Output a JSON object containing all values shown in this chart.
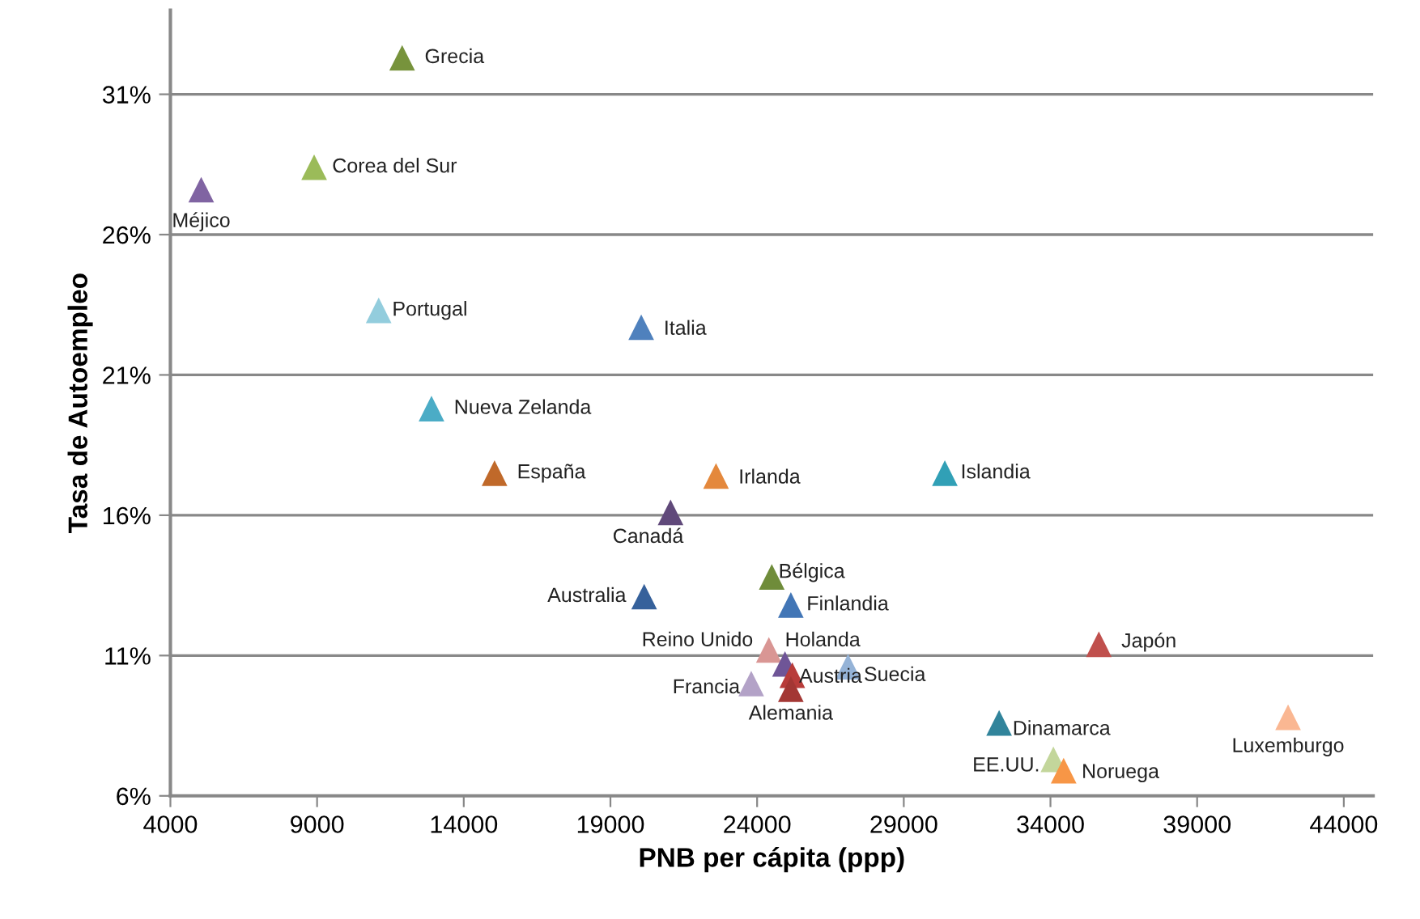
{
  "chart_data": {
    "type": "scatter",
    "xlabel": "PNB per cápita (ppp)",
    "ylabel": "Tasa de Autoempleo",
    "xlim": [
      4000,
      45000
    ],
    "xticks": [
      4000,
      9000,
      14000,
      19000,
      24000,
      29000,
      34000,
      39000,
      44000
    ],
    "ylim": [
      6,
      34
    ],
    "yticks": [
      {
        "value": 6,
        "label": "6%"
      },
      {
        "value": 11,
        "label": "11%"
      },
      {
        "value": 16,
        "label": "16%"
      },
      {
        "value": 21,
        "label": "21%"
      },
      {
        "value": 26,
        "label": "26%"
      },
      {
        "value": 31,
        "label": "31%"
      }
    ],
    "grid": "y",
    "marker": "triangle",
    "series": [
      {
        "name": "Grecia",
        "color": "#77933c",
        "x": [
          11900
        ],
        "values": [
          32.3
        ]
      },
      {
        "name": "Corea del Sur",
        "color": "#9bbb59",
        "x": [
          8900
        ],
        "values": [
          28.4
        ]
      },
      {
        "name": "Méjico",
        "color": "#8064a2",
        "x": [
          5050
        ],
        "values": [
          27.6
        ]
      },
      {
        "name": "Portugal",
        "color": "#93cddd",
        "x": [
          11100
        ],
        "values": [
          23.3
        ]
      },
      {
        "name": "Italia",
        "color": "#4f81bd",
        "x": [
          20050
        ],
        "values": [
          22.7
        ]
      },
      {
        "name": "Nueva Zelanda",
        "color": "#4bacc6",
        "x": [
          12900
        ],
        "values": [
          19.8
        ]
      },
      {
        "name": "España",
        "color": "#c0692a",
        "x": [
          15050
        ],
        "values": [
          17.5
        ]
      },
      {
        "name": "Irlanda",
        "color": "#e4883c",
        "x": [
          22600
        ],
        "values": [
          17.4
        ]
      },
      {
        "name": "Islandia",
        "color": "#31a0b6",
        "x": [
          30400
        ],
        "values": [
          17.5
        ]
      },
      {
        "name": "Canadá",
        "color": "#60497a",
        "x": [
          21050
        ],
        "values": [
          16.1
        ]
      },
      {
        "name": "Bélgica",
        "color": "#6f8c3a",
        "x": [
          24500
        ],
        "values": [
          13.8
        ]
      },
      {
        "name": "Australia",
        "color": "#36619b",
        "x": [
          20150
        ],
        "values": [
          13.1
        ]
      },
      {
        "name": "Finlandia",
        "color": "#4276b6",
        "x": [
          25150
        ],
        "values": [
          12.8
        ]
      },
      {
        "name": "Japón",
        "color": "#c0504d",
        "x": [
          35650
        ],
        "values": [
          11.4
        ]
      },
      {
        "name": "Reino Unido",
        "color": "#d99694",
        "x": [
          24400
        ],
        "values": [
          11.2
        ]
      },
      {
        "name": "Holanda",
        "color": "#6f5597",
        "x": [
          24950
        ],
        "values": [
          10.7
        ]
      },
      {
        "name": "Suecia",
        "color": "#95b3d7",
        "x": [
          27100
        ],
        "values": [
          10.6
        ]
      },
      {
        "name": "Austria",
        "color": "#b83c3a",
        "x": [
          25200
        ],
        "values": [
          10.3
        ]
      },
      {
        "name": "Francia",
        "color": "#b3a2c7",
        "x": [
          23800
        ],
        "values": [
          10.0
        ]
      },
      {
        "name": "Alemania",
        "color": "#a33734",
        "x": [
          25150
        ],
        "values": [
          9.8
        ]
      },
      {
        "name": "Dinamarca",
        "color": "#31849b",
        "x": [
          32250
        ],
        "values": [
          8.6
        ]
      },
      {
        "name": "Luxemburgo",
        "color": "#fab792",
        "x": [
          42100
        ],
        "values": [
          8.8
        ]
      },
      {
        "name": "EE.UU.",
        "color": "#c3d69b",
        "x": [
          34100
        ],
        "values": [
          7.3
        ]
      },
      {
        "name": "Noruega",
        "color": "#f79646",
        "x": [
          34450
        ],
        "values": [
          6.9
        ]
      }
    ]
  }
}
